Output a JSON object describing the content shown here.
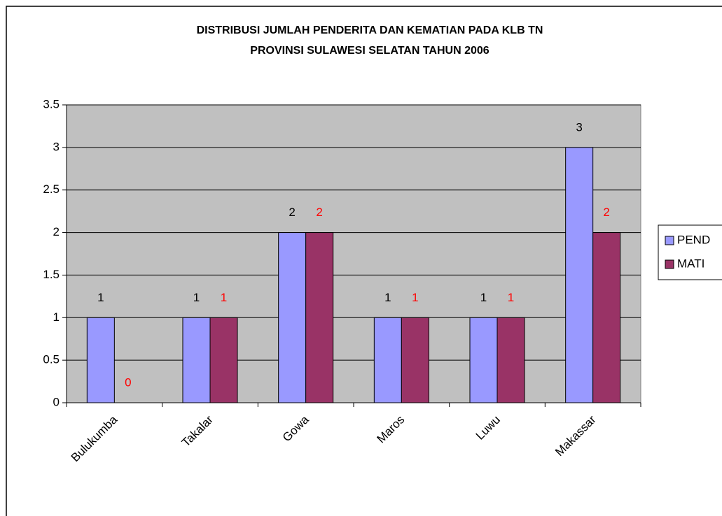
{
  "chart_data": {
    "type": "bar",
    "title": [
      "DISTRIBUSI  JUMLAH PENDERITA DAN KEMATIAN PADA KLB TN",
      "PROVINSI SULAWESI SELATAN TAHUN 2006"
    ],
    "categories": [
      "Bulukumba",
      "Takalar",
      "Gowa",
      "Maros",
      "Luwu",
      "Makassar"
    ],
    "series": [
      {
        "name": "PEND",
        "color": "#9999ff",
        "label_color": "#000000",
        "values": [
          1,
          1,
          2,
          1,
          1,
          3
        ]
      },
      {
        "name": "MATI",
        "color": "#993366",
        "label_color": "#ff0000",
        "values": [
          0,
          1,
          2,
          1,
          1,
          2
        ]
      }
    ],
    "ylim": [
      0,
      3.5
    ],
    "yticks": [
      0,
      0.5,
      1,
      1.5,
      2,
      2.5,
      3,
      3.5
    ],
    "grid": true,
    "legend": "right"
  }
}
